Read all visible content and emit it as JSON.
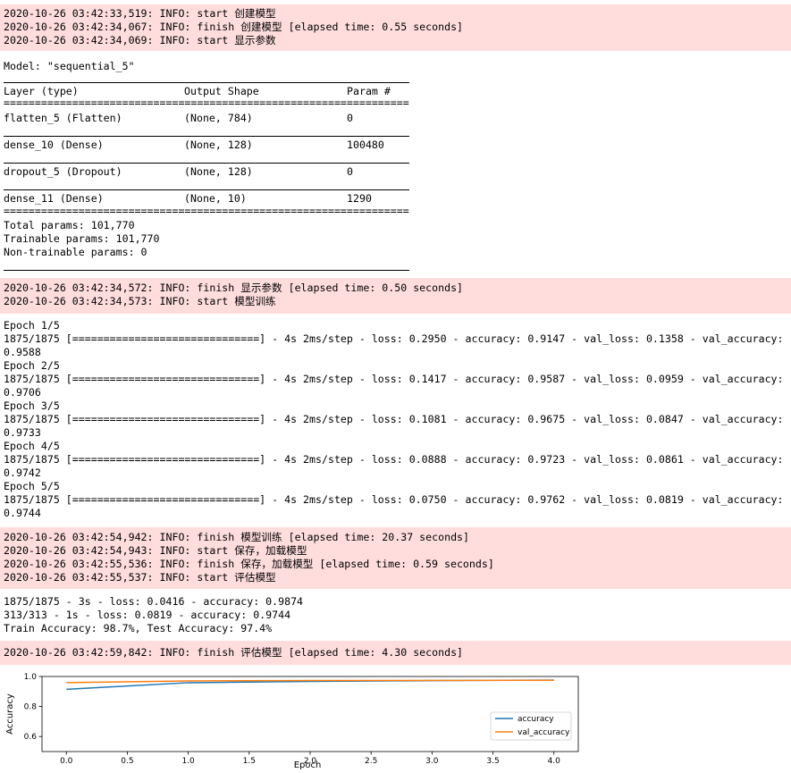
{
  "log_block_1": [
    "2020-10-26 03:42:33,519: INFO: start 创建模型",
    "2020-10-26 03:42:34,067: INFO: finish 创建模型 [elapsed time: 0.55 seconds]",
    "2020-10-26 03:42:34,069: INFO: start 显示参数"
  ],
  "model_summary": {
    "model_line": "Model: \"sequential_5\"",
    "header": {
      "layer": "Layer (type)",
      "shape": "Output Shape",
      "params": "Param #"
    },
    "double_rule": "=================================================================",
    "layers": [
      {
        "name": "flatten_5 (Flatten)",
        "shape": "(None, 784)",
        "params": "0"
      },
      {
        "name": "dense_10 (Dense)",
        "shape": "(None, 128)",
        "params": "100480"
      },
      {
        "name": "dropout_5 (Dropout)",
        "shape": "(None, 128)",
        "params": "0"
      },
      {
        "name": "dense_11 (Dense)",
        "shape": "(None, 10)",
        "params": "1290"
      }
    ],
    "totals": [
      "Total params: 101,770",
      "Trainable params: 101,770",
      "Non-trainable params: 0"
    ]
  },
  "log_block_2": [
    "2020-10-26 03:42:34,572: INFO: finish 显示参数 [elapsed time: 0.50 seconds]",
    "2020-10-26 03:42:34,573: INFO: start 模型训练"
  ],
  "training_output": [
    "Epoch 1/5",
    "1875/1875 [==============================] - 4s 2ms/step - loss: 0.2950 - accuracy: 0.9147 - val_loss: 0.1358 - val_accuracy:",
    "0.9588",
    "Epoch 2/5",
    "1875/1875 [==============================] - 4s 2ms/step - loss: 0.1417 - accuracy: 0.9587 - val_loss: 0.0959 - val_accuracy:",
    "0.9706",
    "Epoch 3/5",
    "1875/1875 [==============================] - 4s 2ms/step - loss: 0.1081 - accuracy: 0.9675 - val_loss: 0.0847 - val_accuracy:",
    "0.9733",
    "Epoch 4/5",
    "1875/1875 [==============================] - 4s 2ms/step - loss: 0.0888 - accuracy: 0.9723 - val_loss: 0.0861 - val_accuracy:",
    "0.9742",
    "Epoch 5/5",
    "1875/1875 [==============================] - 4s 2ms/step - loss: 0.0750 - accuracy: 0.9762 - val_loss: 0.0819 - val_accuracy:",
    "0.9744"
  ],
  "log_block_3": [
    "2020-10-26 03:42:54,942: INFO: finish 模型训练 [elapsed time: 20.37 seconds]",
    "2020-10-26 03:42:54,943: INFO: start 保存，加载模型",
    "2020-10-26 03:42:55,536: INFO: finish 保存，加载模型 [elapsed time: 0.59 seconds]",
    "2020-10-26 03:42:55,537: INFO: start 评估模型"
  ],
  "evaluation_output": [
    "1875/1875 - 3s - loss: 0.0416 - accuracy: 0.9874",
    "313/313 - 1s - loss: 0.0819 - accuracy: 0.9744",
    "Train Accuracy: 98.7%, Test Accuracy: 97.4%"
  ],
  "log_block_4": [
    "2020-10-26 03:42:59,842: INFO: finish 评估模型 [elapsed time: 4.30 seconds]"
  ],
  "colors": {
    "log_bg": "#ffdddd",
    "accuracy_line": "#1f77b4",
    "val_accuracy_line": "#ff7f0e"
  },
  "chart_data": {
    "type": "line",
    "xlabel": "Epoch",
    "ylabel": "Accuracy",
    "x": [
      0,
      1,
      2,
      3,
      4
    ],
    "series": [
      {
        "name": "accuracy",
        "values": [
          0.9147,
          0.9587,
          0.9675,
          0.9723,
          0.9762
        ]
      },
      {
        "name": "val_accuracy",
        "values": [
          0.9588,
          0.9706,
          0.9733,
          0.9742,
          0.9744
        ]
      }
    ],
    "xlim": [
      -0.2,
      4.2
    ],
    "ylim": [
      0.5,
      1.0
    ],
    "xticks": [
      "0.0",
      "0.5",
      "1.0",
      "1.5",
      "2.0",
      "2.5",
      "3.0",
      "3.5",
      "4.0"
    ],
    "yticks": [
      "0.6",
      "0.8",
      "1.0"
    ],
    "legend_position": "lower-right",
    "grid": false
  }
}
